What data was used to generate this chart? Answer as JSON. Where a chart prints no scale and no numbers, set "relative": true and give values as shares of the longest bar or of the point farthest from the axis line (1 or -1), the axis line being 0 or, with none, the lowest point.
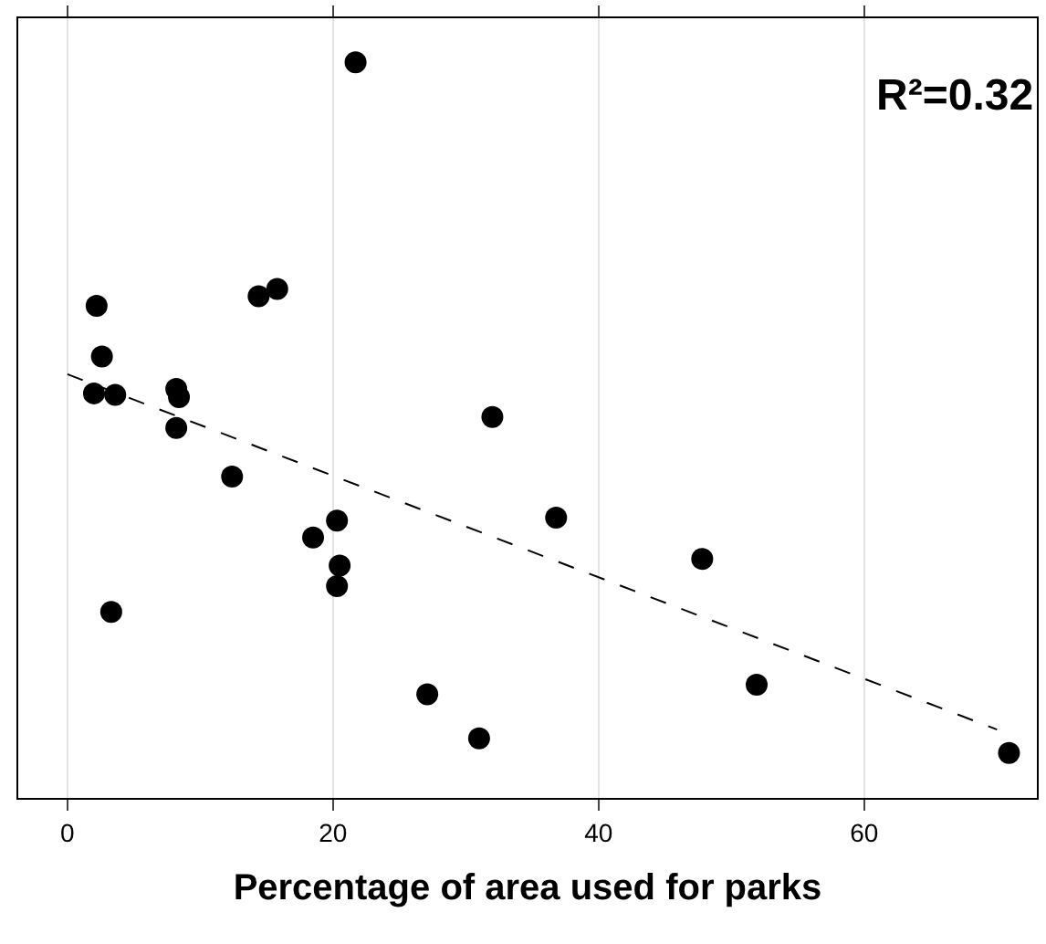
{
  "chart_data": {
    "type": "scatter",
    "relative": true,
    "xlabel": "Percentage of area used for parks",
    "xlim": [
      -3.7,
      73
    ],
    "xticks": [
      0,
      20,
      40,
      60
    ],
    "grid": "x",
    "marker": "circle",
    "annotations": [
      "R²=0.32"
    ],
    "series": [
      {
        "color": "#000000",
        "x": [
          2.2,
          2.6,
          2.0,
          3.6,
          8.2,
          8.4,
          8.2,
          3.3,
          12.4,
          14.4,
          15.8,
          21.7,
          18.5,
          20.3,
          20.5,
          20.3,
          27.1,
          31.0,
          32.0,
          36.8,
          47.8,
          51.9,
          70.9
        ],
        "values": [
          0.669,
          0.6,
          0.55,
          0.548,
          0.556,
          0.545,
          0.503,
          0.253,
          0.437,
          0.682,
          0.692,
          1,
          0.354,
          0.377,
          0.316,
          0.288,
          0.141,
          0.081,
          0.518,
          0.381,
          0.325,
          0.154,
          0.061
        ]
      },
      {
        "type": "line",
        "color": "#000000",
        "line_style": "dashed",
        "marker": "none",
        "x": [
          0,
          70
        ],
        "values": [
          0.576,
          0.093
        ]
      }
    ]
  }
}
